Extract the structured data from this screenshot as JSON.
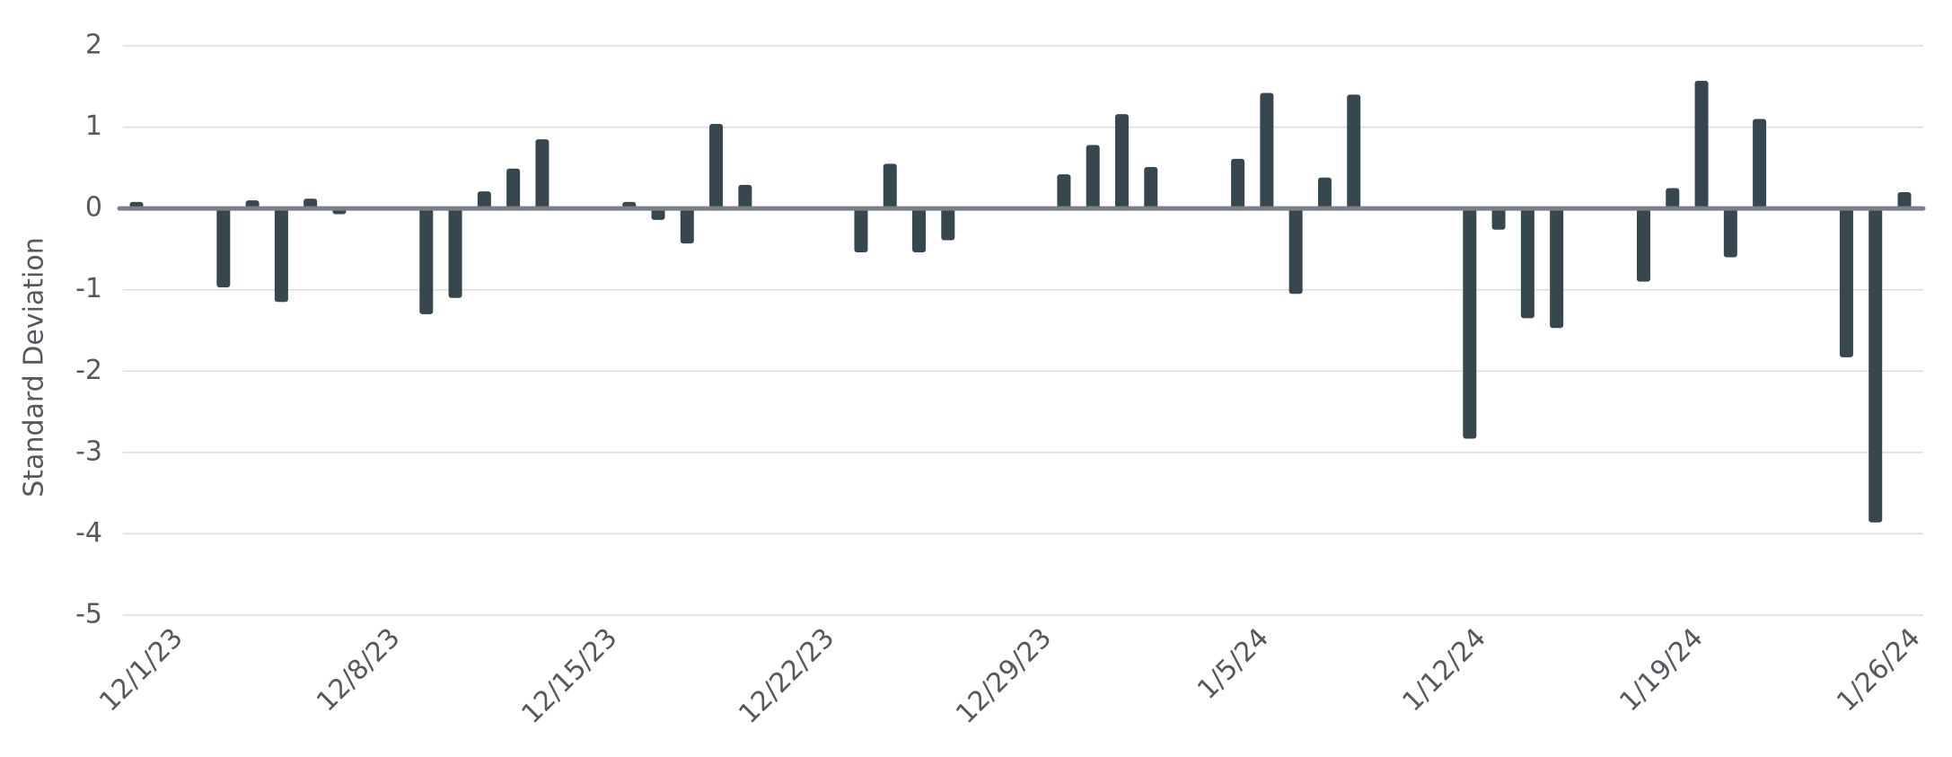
{
  "chart_data": {
    "type": "bar",
    "y_label": "Standard Deviation",
    "x": [
      "12/1/23",
      "12/4/23",
      "12/5/23",
      "12/6/23",
      "12/7/23",
      "12/8/23",
      "12/11/23",
      "12/12/23",
      "12/13/23",
      "12/14/23",
      "12/15/23",
      "12/18/23",
      "12/19/23",
      "12/20/23",
      "12/21/23",
      "12/22/23",
      "12/26/23",
      "12/27/23",
      "12/28/23",
      "12/29/23",
      "1/2/24",
      "1/3/24",
      "1/4/24",
      "1/5/24",
      "1/8/24",
      "1/9/24",
      "1/10/24",
      "1/11/24",
      "1/12/24",
      "1/16/24",
      "1/17/24",
      "1/18/24",
      "1/19/24",
      "1/22/24",
      "1/23/24",
      "1/24/24",
      "1/25/24",
      "1/26/24",
      "1/29/24",
      "1/30/24",
      "1/31/24"
    ],
    "values": [
      0.08,
      -0.97,
      0.1,
      -1.15,
      0.12,
      -0.07,
      -1.3,
      -1.1,
      0.21,
      0.49,
      0.85,
      0.08,
      -0.14,
      -0.43,
      1.04,
      0.29,
      -0.54,
      0.55,
      -0.54,
      -0.39,
      0.42,
      0.78,
      1.16,
      0.51,
      0.61,
      1.42,
      -1.05,
      0.38,
      1.4,
      -2.83,
      -0.26,
      -1.35,
      -1.47,
      -0.9,
      0.25,
      1.57,
      -0.6,
      1.1,
      -1.83,
      -3.86,
      0.2
    ],
    "color": "#37474f",
    "zero_line_color": "#7b7f8a",
    "xlim": [
      "12/1/23",
      "1/31/24"
    ],
    "xticks": [
      "12/1/23",
      "12/8/23",
      "12/15/23",
      "12/22/23",
      "12/29/23",
      "1/5/24",
      "1/12/24",
      "1/19/24",
      "1/26/24"
    ],
    "ylim": [
      -5,
      2
    ],
    "yticks": [
      -5,
      -4,
      -3,
      -2,
      -1,
      0,
      1,
      2
    ],
    "grid": true
  }
}
